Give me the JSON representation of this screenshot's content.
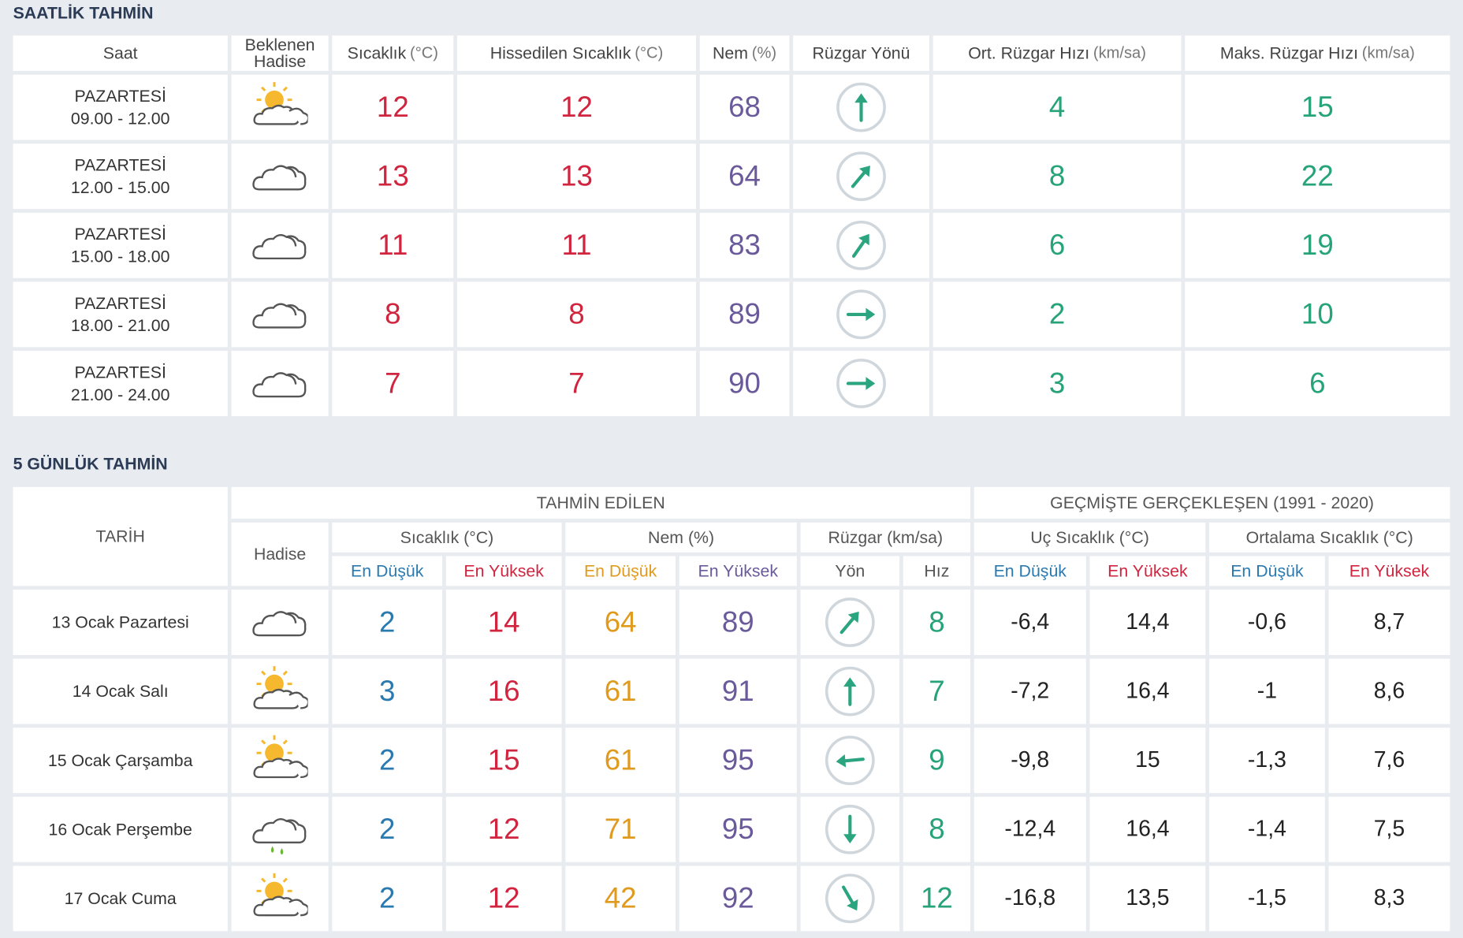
{
  "hourly": {
    "title": "SAATLİK TAHMİN",
    "headers": [
      {
        "name": "Saat"
      },
      {
        "name": "Beklenen Hadise"
      },
      {
        "name": "Sıcaklık",
        "unit": "(°C)"
      },
      {
        "name": "Hissedilen Sıcaklık",
        "unit": "(°C)"
      },
      {
        "name": "Nem",
        "unit": "(%)"
      },
      {
        "name": "Rüzgar Yönü"
      },
      {
        "name": "Ort. Rüzgar Hızı",
        "unit": "(km/sa)"
      },
      {
        "name": "Maks. Rüzgar Hızı",
        "unit": "(km/sa)"
      }
    ],
    "rows": [
      {
        "day": "PAZARTESİ",
        "time": "09.00 - 12.00",
        "temp": 12,
        "feels": 12,
        "humidity": 68,
        "wind_avg": 4,
        "wind_max": 15
      },
      {
        "day": "PAZARTESİ",
        "time": "12.00 - 15.00",
        "temp": 13,
        "feels": 13,
        "humidity": 64,
        "wind_avg": 8,
        "wind_max": 22
      },
      {
        "day": "PAZARTESİ",
        "time": "15.00 - 18.00",
        "temp": 11,
        "feels": 11,
        "humidity": 83,
        "wind_avg": 6,
        "wind_max": 19
      },
      {
        "day": "PAZARTESİ",
        "time": "18.00 - 21.00",
        "temp": 8,
        "feels": 8,
        "humidity": 89,
        "wind_avg": 2,
        "wind_max": 10
      },
      {
        "day": "PAZARTESİ",
        "time": "21.00 - 24.00",
        "temp": 7,
        "feels": 7,
        "humidity": 90,
        "wind_avg": 3,
        "wind_max": 6
      }
    ]
  },
  "daily": {
    "title": "5 GÜNLÜK TAHMİN",
    "date_header": "TARİH",
    "event_header": "Hadise",
    "group_headers": [
      "TAHMİN EDİLEN",
      "GEÇMİŞTE GERÇEKLEŞEN (1991 - 2020)"
    ],
    "sub_headers": [
      "Sıcaklık (°C)",
      "Nem (%)",
      "Rüzgar (km/sa)",
      "Uç Sıcaklık (°C)",
      "Ortalama Sıcaklık (°C)"
    ],
    "columns": [
      "En Düşük",
      "En Yüksek",
      "En Düşük",
      "En Yüksek",
      "Yön",
      "Hız",
      "En Düşük",
      "En Yüksek",
      "En Düşük",
      "En Yüksek"
    ],
    "rows": [
      {
        "date": "13 Ocak Pazartesi",
        "temp_min": 2,
        "temp_max": 14,
        "hum_min": 64,
        "hum_max": 89,
        "wind_speed": 8,
        "extreme_min": "-6,4",
        "extreme_max": "14,4",
        "avg_min": "-0,6",
        "avg_max": "8,7"
      },
      {
        "date": "14 Ocak Salı",
        "temp_min": 3,
        "temp_max": 16,
        "hum_min": 61,
        "hum_max": 91,
        "wind_speed": 7,
        "extreme_min": "-7,2",
        "extreme_max": "16,4",
        "avg_min": -1,
        "avg_max": "8,6"
      },
      {
        "date": "15 Ocak Çarşamba",
        "temp_min": 2,
        "temp_max": 15,
        "hum_min": 61,
        "hum_max": 95,
        "wind_speed": 9,
        "extreme_min": "-9,8",
        "extreme_max": 15,
        "avg_min": "-1,3",
        "avg_max": "7,6"
      },
      {
        "date": "16 Ocak Perşembe",
        "temp_min": 2,
        "temp_max": 12,
        "hum_min": 71,
        "hum_max": 95,
        "wind_speed": 8,
        "extreme_min": "-12,4",
        "extreme_max": "16,4",
        "avg_min": "-1,4",
        "avg_max": "7,5"
      },
      {
        "date": "17 Ocak Cuma",
        "temp_min": 2,
        "temp_max": 12,
        "hum_min": 42,
        "hum_max": 92,
        "wind_speed": 12,
        "extreme_min": "-16,8",
        "extreme_max": "13,5",
        "avg_min": "-1,5",
        "avg_max": "8,3"
      }
    ]
  }
}
